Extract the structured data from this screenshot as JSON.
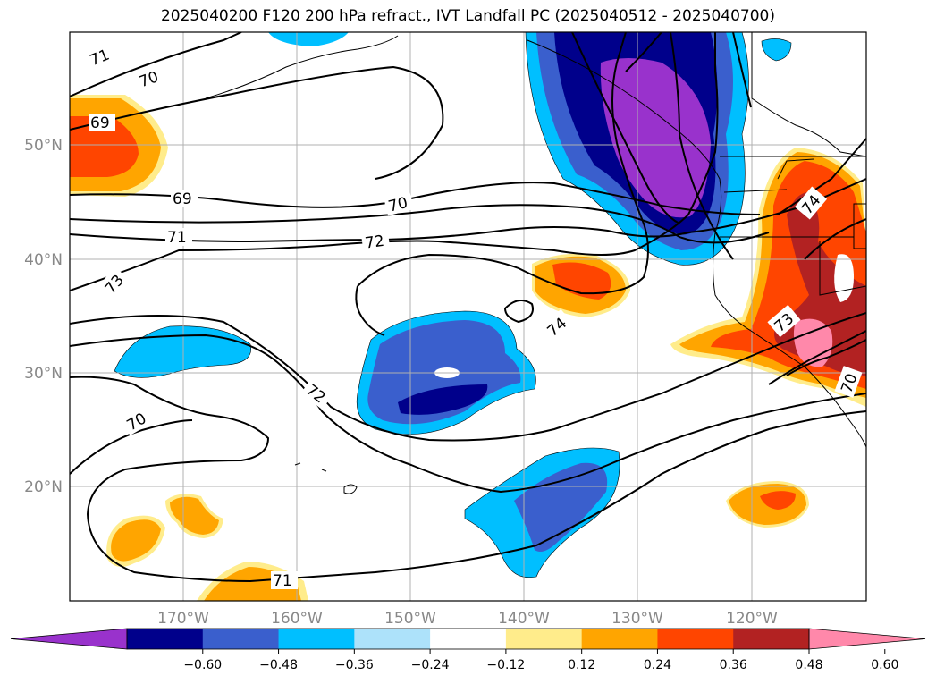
{
  "title": "2025040200 F120 200 hPa refract., IVT Landfall PC (2025040512 - 2025040700)",
  "lat_labels": [
    "50°N",
    "40°N",
    "30°N",
    "20°N"
  ],
  "lon_labels": [
    "170°W",
    "160°W",
    "150°W",
    "140°W",
    "130°W",
    "120°W"
  ],
  "colorbar": {
    "ticks": [
      "−0.60",
      "−0.48",
      "−0.36",
      "−0.24",
      "−0.12",
      "0.12",
      "0.24",
      "0.36",
      "0.48",
      "0.60"
    ],
    "colors": [
      "#9932CC",
      "#00008B",
      "#3A5FCD",
      "#00BFFF",
      "#ADE2FA",
      "#FFFFFF",
      "#FFEC8B",
      "#FFA500",
      "#FF4500",
      "#B22222",
      "#FF88AA"
    ]
  },
  "contour_labels": [
    "71",
    "70",
    "69",
    "69",
    "70",
    "71",
    "72",
    "73",
    "72",
    "70",
    "74",
    "73",
    "71",
    "74",
    "70"
  ]
}
